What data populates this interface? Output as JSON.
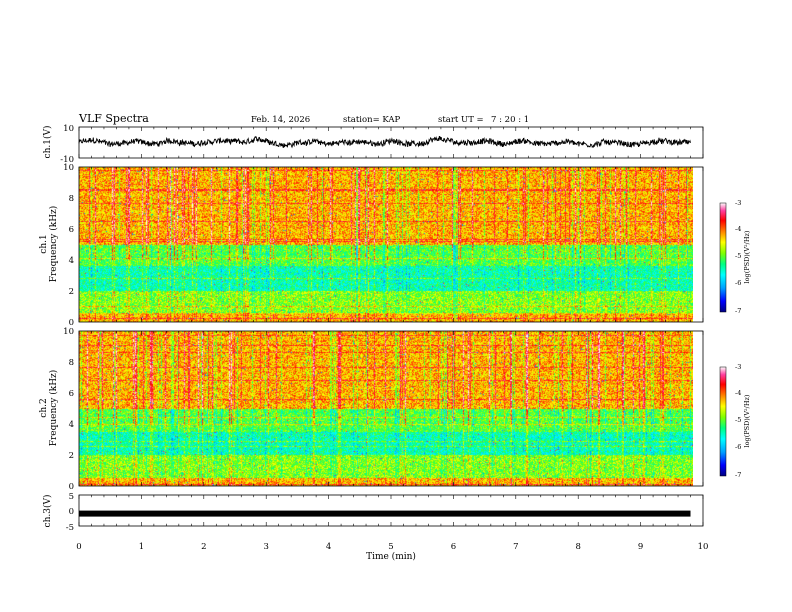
{
  "header": {
    "title": "VLF Spectra",
    "date": "Feb. 14, 2026",
    "station": "station= KAP",
    "start": "start UT =",
    "start_time": "7 : 20 : 1"
  },
  "colors": {
    "colormap": [
      "#000080",
      "#0000ff",
      "#00a0ff",
      "#00ffff",
      "#00ff80",
      "#80ff00",
      "#ffff00",
      "#ff8000",
      "#ff0000",
      "#ff40a0",
      "#ffffff"
    ]
  },
  "chart_data": [
    {
      "type": "line",
      "id": "ch1_waveform",
      "ylabel": "ch.1(V)",
      "ylim": [
        -10,
        10
      ],
      "yticks": [
        "10",
        "-10"
      ],
      "xlim": [
        0,
        10
      ],
      "note": "raw waveform, noisy signal roughly between -5 and 5 V"
    },
    {
      "type": "heatmap",
      "id": "ch1_spectrogram",
      "ylabel": "ch.1",
      "ylabel2": "Frequency (kHz)",
      "xlim": [
        0,
        10
      ],
      "ylim": [
        0,
        10
      ],
      "yticks": [
        "0",
        "2",
        "4",
        "6",
        "8",
        "10"
      ],
      "data_end_min": 9.8,
      "colorbar": {
        "label": "log(PSD)(V²/Hz)",
        "range": [
          -7,
          -3
        ],
        "ticks": [
          "-3",
          "-4",
          "-5",
          "-6",
          "-7"
        ]
      },
      "bands": [
        {
          "range_khz": [
            0,
            0.5
          ],
          "level": "high"
        },
        {
          "range_khz": [
            0.5,
            2
          ],
          "level": "mid"
        },
        {
          "range_khz": [
            2,
            3.6
          ],
          "level": "low"
        },
        {
          "range_khz": [
            3.6,
            5
          ],
          "level": "mid-low"
        },
        {
          "range_khz": [
            5,
            10
          ],
          "level": "high"
        }
      ]
    },
    {
      "type": "heatmap",
      "id": "ch2_spectrogram",
      "ylabel": "ch.2",
      "ylabel2": "Frequency (kHz)",
      "xlim": [
        0,
        10
      ],
      "ylim": [
        0,
        10
      ],
      "yticks": [
        "0",
        "2",
        "4",
        "6",
        "8",
        "10"
      ],
      "data_end_min": 9.8,
      "colorbar": {
        "label": "log(PSD)(V²/Hz)",
        "range": [
          -7,
          -3
        ],
        "ticks": [
          "-3",
          "-4",
          "-5",
          "-6",
          "-7"
        ]
      },
      "bands": [
        {
          "range_khz": [
            0,
            0.5
          ],
          "level": "high"
        },
        {
          "range_khz": [
            0.5,
            2
          ],
          "level": "mid"
        },
        {
          "range_khz": [
            2,
            3.5
          ],
          "level": "low"
        },
        {
          "range_khz": [
            3.5,
            5
          ],
          "level": "mid-low"
        },
        {
          "range_khz": [
            5,
            10
          ],
          "level": "high"
        }
      ]
    },
    {
      "type": "line",
      "id": "ch3_waveform",
      "ylabel": "ch.3(V)",
      "ylim": [
        -5,
        5
      ],
      "yticks": [
        "5",
        "0",
        "-5"
      ],
      "xlim": [
        0,
        10
      ],
      "note": "flat trace near -1 V",
      "level_v": -1
    }
  ],
  "x_axis": {
    "label": "Time (min)",
    "ticks": [
      "0",
      "1",
      "2",
      "3",
      "4",
      "5",
      "6",
      "7",
      "8",
      "9",
      "10"
    ]
  }
}
